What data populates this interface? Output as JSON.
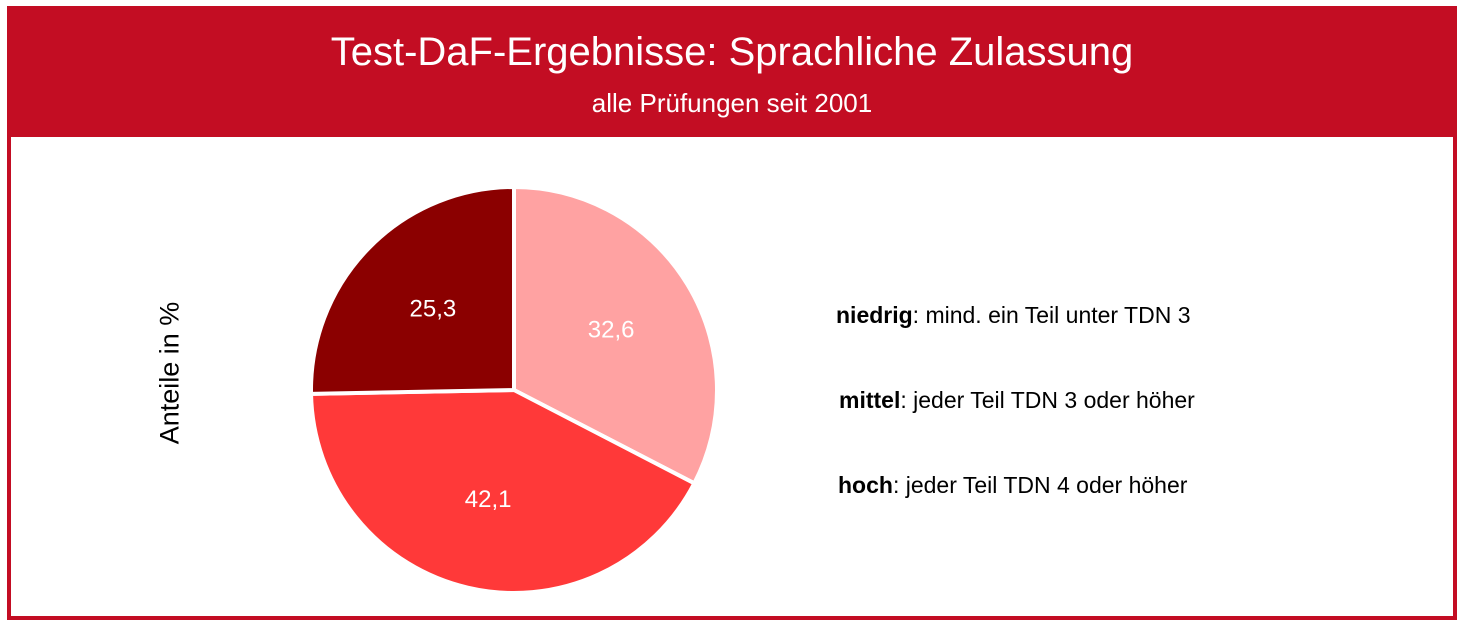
{
  "header": {
    "title": "Test-DaF-Ergebnisse: Sprachliche Zulassung",
    "subtitle": "alle Prüfungen seit 2001"
  },
  "colors": {
    "frame": "#c30d23",
    "header_bg": "#c30d23",
    "header_text": "#ffffff"
  },
  "chart_data": {
    "type": "pie",
    "ylabel": "Anteile in %",
    "slices": [
      {
        "key": "niedrig",
        "value": 32.6,
        "label": "32,6",
        "color": "#ffa2a2"
      },
      {
        "key": "mittel",
        "value": 42.1,
        "label": "42,1",
        "color": "#ff3939"
      },
      {
        "key": "hoch",
        "value": 25.3,
        "label": "25,3",
        "color": "#8b0000"
      }
    ],
    "start_angle_deg": 0,
    "direction": "clockwise",
    "legend": [
      {
        "term": "niedrig",
        "desc": ": mind. ein Teil unter TDN 3"
      },
      {
        "term": "mittel",
        "desc": ": jeder Teil TDN 3 oder höher"
      },
      {
        "term": "hoch",
        "desc": ": jeder Teil TDN 4 oder höher"
      }
    ],
    "legend_position": "right"
  }
}
